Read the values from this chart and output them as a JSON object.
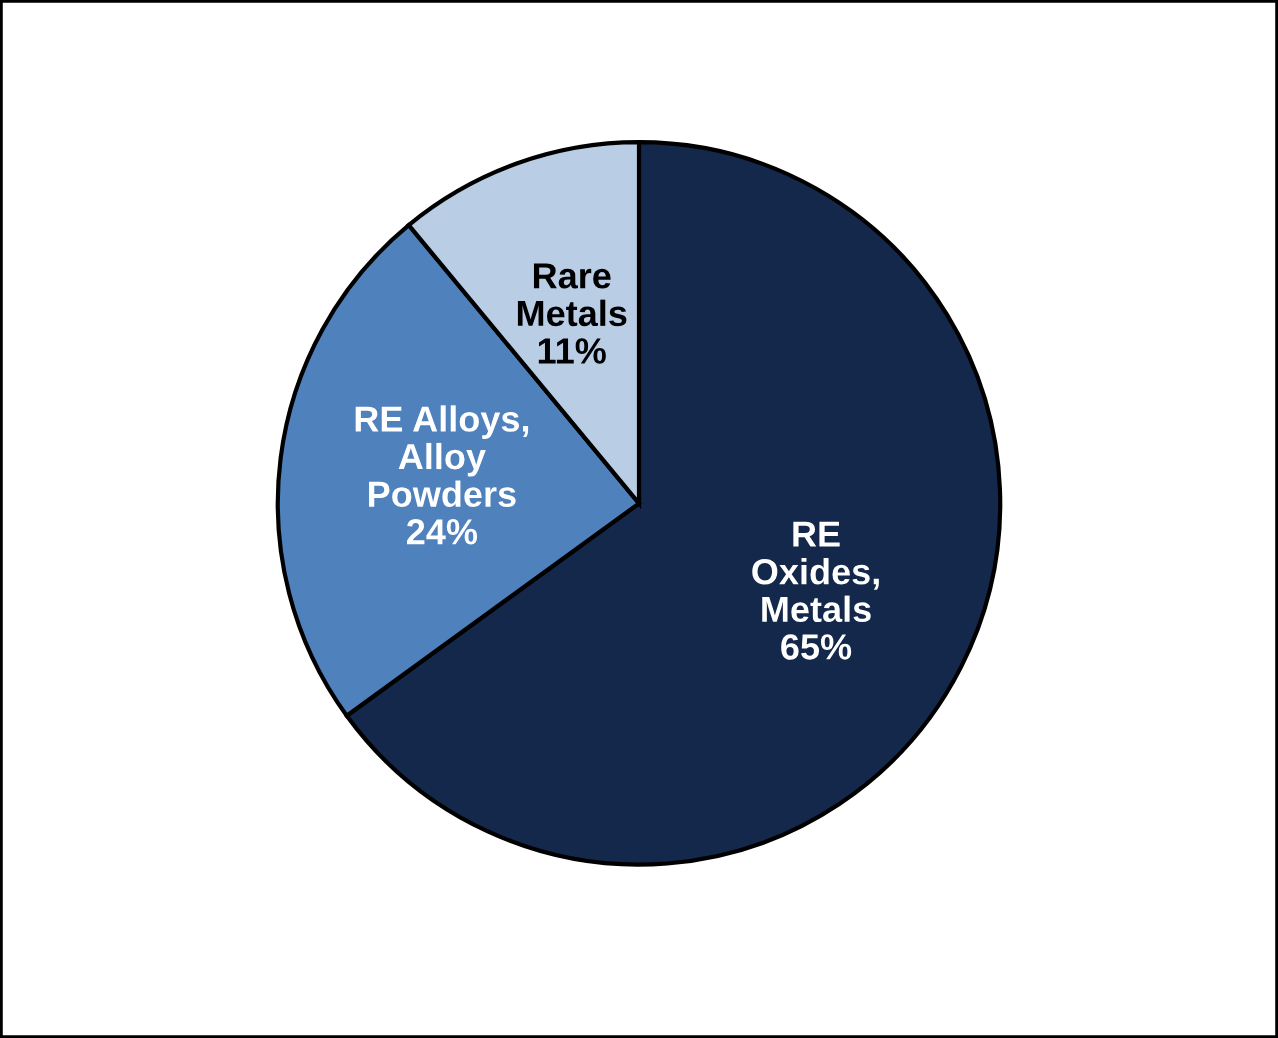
{
  "chart_data": {
    "type": "pie",
    "categories": [
      "RE\nOxides,\nMetals",
      "RE Alloys,\nAlloy\nPowders",
      "Rare\nMetals"
    ],
    "values": [
      65,
      24,
      11
    ],
    "value_labels": [
      "65%",
      "24%",
      "11%"
    ],
    "colors": [
      "#13284a",
      "#4f81bd",
      "#b9cde5"
    ]
  }
}
